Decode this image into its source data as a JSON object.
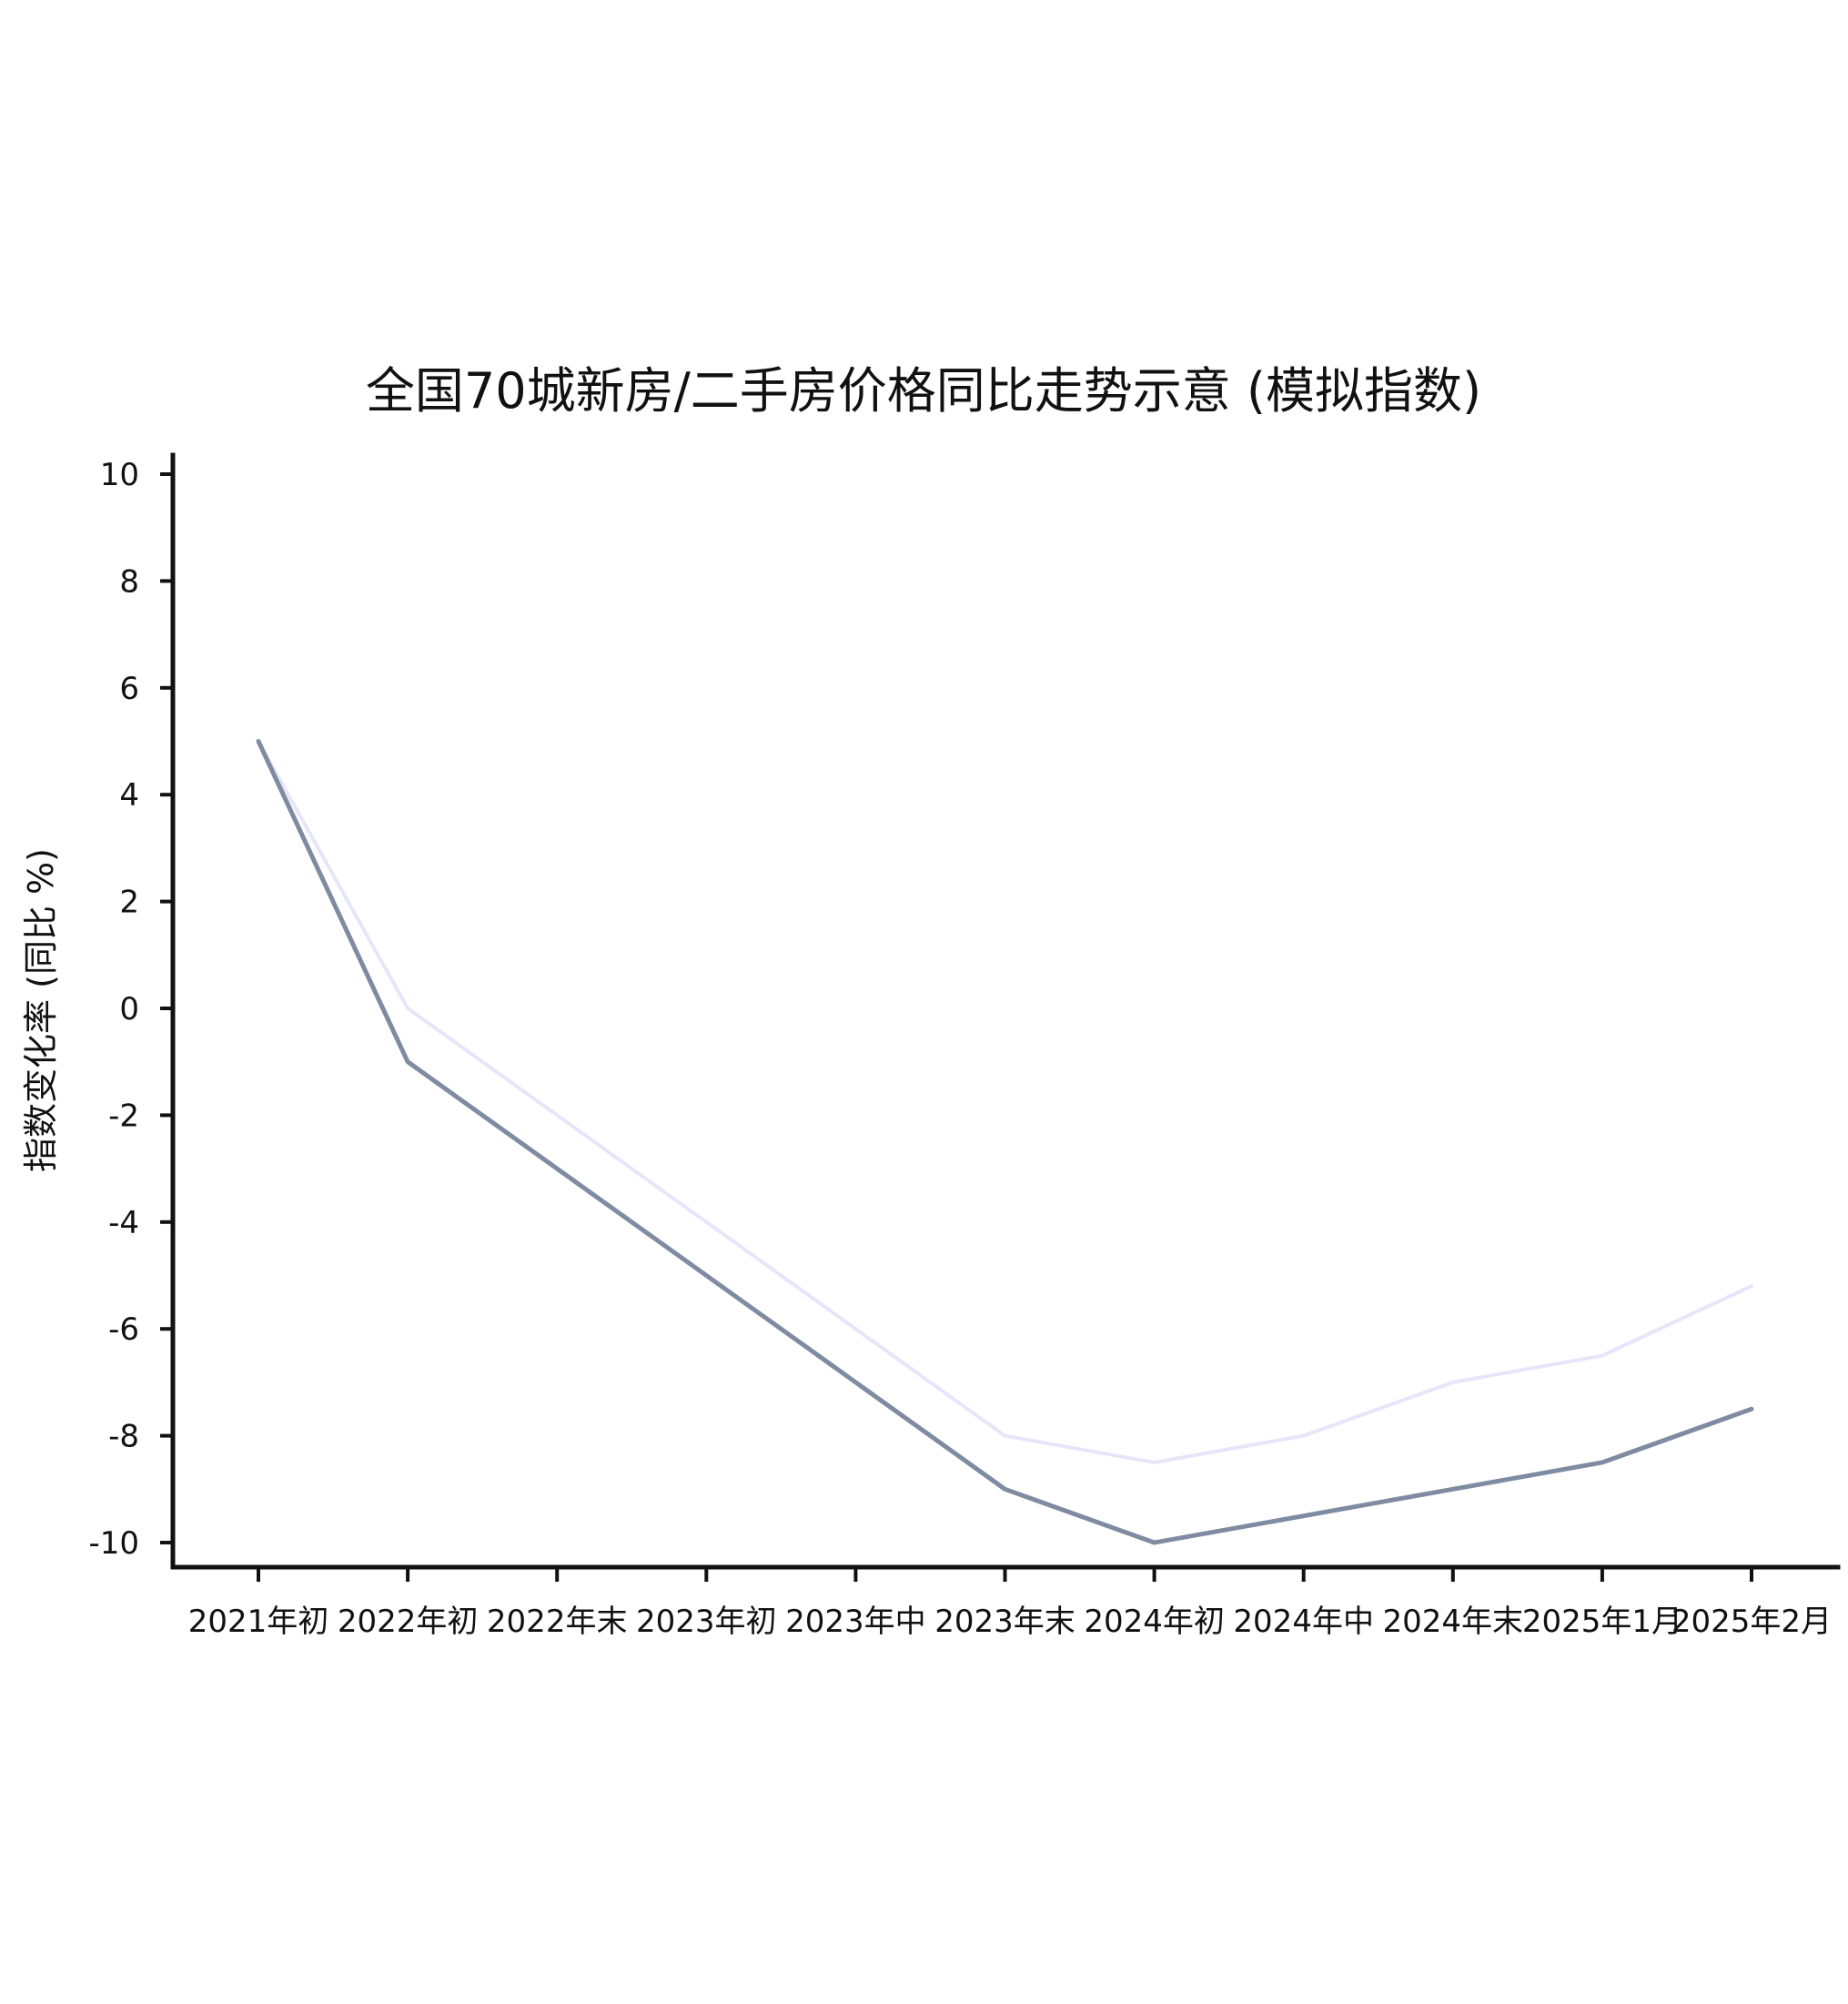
{
  "chart_data": {
    "type": "line",
    "title": "全国70城新房/二手房价格同比走势示意 (模拟指数)",
    "xlabel": "",
    "ylabel": "指数变化率 (同比 %)",
    "categories": [
      "2021年初",
      "2022年初",
      "2022年末",
      "2023年初",
      "2023年中",
      "2023年末",
      "2024年初",
      "2024年中",
      "2024年末",
      "2025年1月",
      "2025年2月"
    ],
    "yticks": [
      10,
      8,
      6,
      4,
      2,
      0,
      -2,
      -4,
      -6,
      -8,
      -10
    ],
    "ylim": [
      -10.4,
      10.4
    ],
    "grid": false,
    "legend": "none",
    "series": [
      {
        "values": [
          5,
          0,
          -2,
          -4,
          -6,
          -8,
          -8.5,
          -8,
          -7,
          -6.5,
          -5.2
        ],
        "color": "#e6e6fa"
      },
      {
        "values": [
          5,
          -1,
          -3,
          -5,
          -7,
          -9,
          -10,
          -9.5,
          -9,
          -8.5,
          -7.5
        ],
        "color": "#7f8ba1"
      }
    ]
  }
}
